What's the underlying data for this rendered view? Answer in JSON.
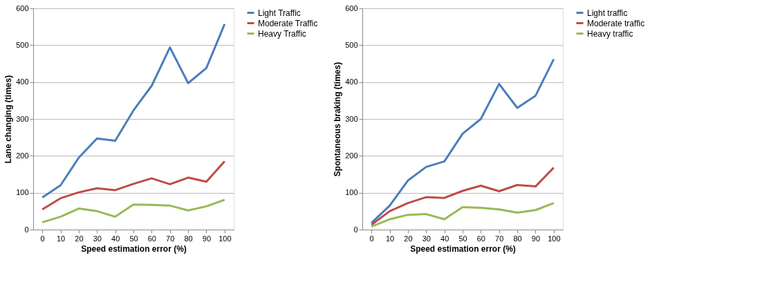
{
  "chart_data": [
    {
      "type": "line",
      "xlabel": "Speed estimation error (%)",
      "ylabel": "Lane changing (times)",
      "categories": [
        "0",
        "10",
        "20",
        "30",
        "40",
        "50",
        "60",
        "70",
        "80",
        "90",
        "100"
      ],
      "ylim": [
        0,
        600
      ],
      "yticks": [
        0,
        100,
        200,
        300,
        400,
        500,
        600
      ],
      "grid": "y",
      "legend": "right",
      "marker": "none",
      "line_style": "solid",
      "series": [
        {
          "name": "Light Traffic",
          "color": "#4a7ebb",
          "values": [
            87,
            120,
            195,
            247,
            241,
            323,
            390,
            494,
            397,
            438,
            557
          ]
        },
        {
          "name": "Moderate Traffic",
          "color": "#be4b48",
          "values": [
            55,
            85,
            101,
            112,
            107,
            124,
            139,
            123,
            141,
            130,
            185
          ]
        },
        {
          "name": "Heavy Traffic",
          "color": "#98b954",
          "values": [
            20,
            35,
            57,
            50,
            35,
            68,
            67,
            65,
            52,
            63,
            81
          ]
        }
      ]
    },
    {
      "type": "line",
      "xlabel": "Speed estimation error (%)",
      "ylabel": "Spontaneous braking (times)",
      "categories": [
        "0",
        "10",
        "20",
        "30",
        "40",
        "50",
        "60",
        "70",
        "80",
        "90",
        "100"
      ],
      "ylim": [
        0,
        600
      ],
      "yticks": [
        0,
        100,
        200,
        300,
        400,
        500,
        600
      ],
      "grid": "y",
      "legend": "right",
      "marker": "none",
      "line_style": "solid",
      "series": [
        {
          "name": "Light traffic",
          "color": "#4a7ebb",
          "values": [
            18,
            65,
            133,
            170,
            185,
            260,
            300,
            395,
            330,
            363,
            462
          ]
        },
        {
          "name": "Moderate traffic",
          "color": "#be4b48",
          "values": [
            13,
            50,
            72,
            88,
            86,
            105,
            119,
            104,
            121,
            117,
            168
          ]
        },
        {
          "name": "Heavy traffic",
          "color": "#98b954",
          "values": [
            8,
            28,
            40,
            42,
            28,
            61,
            59,
            55,
            46,
            53,
            72
          ]
        }
      ]
    }
  ]
}
